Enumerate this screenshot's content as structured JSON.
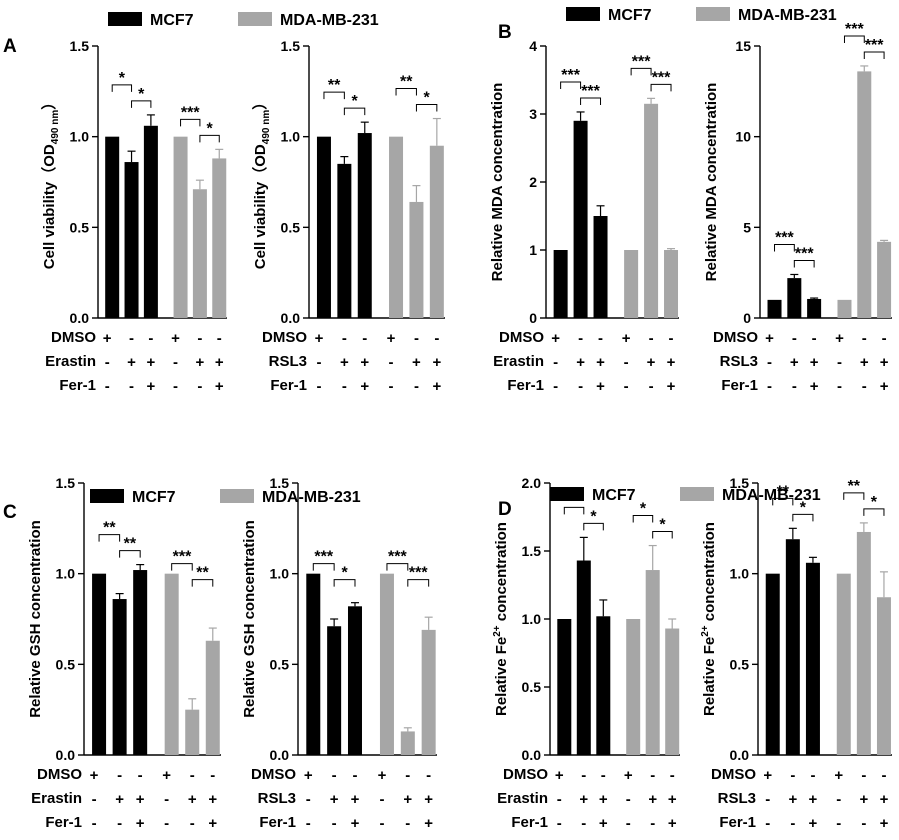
{
  "colors": {
    "mcf7": "#000000",
    "mda": "#a6a6a6"
  },
  "groups_order": [
    "MCF7",
    "MCF7",
    "MCF7",
    "MDA-MB-231",
    "MDA-MB-231",
    "MDA-MB-231"
  ],
  "chart_data": [
    {
      "type": "bar",
      "panel": "A",
      "legend": [
        "MCF7",
        "MDA-MB-231"
      ],
      "ylabel_main": "Cell viability（OD",
      "ylabel_sub": "490 nm",
      "ylabel_end": "）",
      "ylim": [
        0,
        1.5
      ],
      "yticks": [
        "0.0",
        "0.5",
        "1.0",
        "1.5"
      ],
      "values": [
        1.0,
        0.86,
        1.06,
        1.0,
        0.71,
        0.88
      ],
      "errors": [
        0,
        0.06,
        0.06,
        0,
        0.05,
        0.05
      ],
      "treatments": [
        {
          "name": "DMSO",
          "marks": [
            "+",
            "-",
            "-",
            "+",
            "-",
            "-"
          ]
        },
        {
          "name": "Erastin",
          "marks": [
            "-",
            "+",
            "+",
            "-",
            "+",
            "+"
          ]
        },
        {
          "name": "Fer-1",
          "marks": [
            "-",
            "-",
            "+",
            "-",
            "-",
            "+"
          ]
        }
      ],
      "significance": [
        {
          "from": 0,
          "to": 1,
          "label": "*"
        },
        {
          "from": 1,
          "to": 2,
          "label": "*"
        },
        {
          "from": 3,
          "to": 4,
          "label": "***"
        },
        {
          "from": 4,
          "to": 5,
          "label": "*"
        }
      ]
    },
    {
      "type": "bar",
      "panel": "A",
      "ylabel_main": "Cell viability（OD",
      "ylabel_sub": "490 nm",
      "ylabel_end": "）",
      "ylim": [
        0,
        1.5
      ],
      "yticks": [
        "0.0",
        "0.5",
        "1.0",
        "1.5"
      ],
      "values": [
        1.0,
        0.85,
        1.02,
        1.0,
        0.64,
        0.95
      ],
      "errors": [
        0,
        0.04,
        0.06,
        0,
        0.09,
        0.15
      ],
      "treatments": [
        {
          "name": "DMSO",
          "marks": [
            "+",
            "-",
            "-",
            "+",
            "-",
            "-"
          ]
        },
        {
          "name": "RSL3",
          "marks": [
            "-",
            "+",
            "+",
            "-",
            "+",
            "+"
          ]
        },
        {
          "name": "Fer-1",
          "marks": [
            "-",
            "-",
            "+",
            "-",
            "-",
            "+"
          ]
        }
      ],
      "significance": [
        {
          "from": 0,
          "to": 1,
          "label": "**"
        },
        {
          "from": 1,
          "to": 2,
          "label": "*"
        },
        {
          "from": 3,
          "to": 4,
          "label": "**"
        },
        {
          "from": 4,
          "to": 5,
          "label": "*"
        }
      ]
    },
    {
      "type": "bar",
      "panel": "B",
      "legend": [
        "MCF7",
        "MDA-MB-231"
      ],
      "ylabel_main": "Relative MDA concentration",
      "ylim": [
        0,
        4
      ],
      "yticks": [
        "0",
        "1",
        "2",
        "3",
        "4"
      ],
      "values": [
        1.0,
        2.9,
        1.5,
        1.0,
        3.15,
        1.0
      ],
      "errors": [
        0,
        0.13,
        0.15,
        0,
        0.08,
        0.02
      ],
      "treatments": [
        {
          "name": "DMSO",
          "marks": [
            "+",
            "-",
            "-",
            "+",
            "-",
            "-"
          ]
        },
        {
          "name": "Erastin",
          "marks": [
            "-",
            "+",
            "+",
            "-",
            "+",
            "+"
          ]
        },
        {
          "name": "Fer-1",
          "marks": [
            "-",
            "-",
            "+",
            "-",
            "-",
            "+"
          ]
        }
      ],
      "significance": [
        {
          "from": 0,
          "to": 1,
          "label": "***"
        },
        {
          "from": 1,
          "to": 2,
          "label": "***"
        },
        {
          "from": 3,
          "to": 4,
          "label": "***"
        },
        {
          "from": 4,
          "to": 5,
          "label": "***"
        }
      ]
    },
    {
      "type": "bar",
      "panel": "B",
      "ylabel_main": "Relative MDA concentration",
      "ylim": [
        0,
        15
      ],
      "yticks": [
        "0",
        "5",
        "10",
        "15"
      ],
      "values": [
        1.0,
        2.2,
        1.05,
        1.0,
        13.6,
        4.2
      ],
      "errors": [
        0,
        0.2,
        0.05,
        0,
        0.3,
        0.08
      ],
      "treatments": [
        {
          "name": "DMSO",
          "marks": [
            "+",
            "-",
            "-",
            "+",
            "-",
            "-"
          ]
        },
        {
          "name": "RSL3",
          "marks": [
            "-",
            "+",
            "+",
            "-",
            "+",
            "+"
          ]
        },
        {
          "name": "Fer-1",
          "marks": [
            "-",
            "-",
            "+",
            "-",
            "-",
            "+"
          ]
        }
      ],
      "significance": [
        {
          "from": 0,
          "to": 1,
          "label": "***"
        },
        {
          "from": 1,
          "to": 2,
          "label": "***"
        },
        {
          "from": 3,
          "to": 4,
          "label": "***"
        },
        {
          "from": 4,
          "to": 5,
          "label": "***"
        }
      ]
    },
    {
      "type": "bar",
      "panel": "C",
      "legend": [
        "MCF7",
        "MDA-MB-231"
      ],
      "ylabel_main": "Relative GSH concentration",
      "ylim": [
        0,
        1.5
      ],
      "yticks": [
        "0.0",
        "0.5",
        "1.0",
        "1.5"
      ],
      "values": [
        1.0,
        0.86,
        1.02,
        1.0,
        0.25,
        0.63
      ],
      "errors": [
        0,
        0.03,
        0.03,
        0,
        0.06,
        0.07
      ],
      "treatments": [
        {
          "name": "DMSO",
          "marks": [
            "+",
            "-",
            "-",
            "+",
            "-",
            "-"
          ]
        },
        {
          "name": "Erastin",
          "marks": [
            "-",
            "+",
            "+",
            "-",
            "+",
            "+"
          ]
        },
        {
          "name": "Fer-1",
          "marks": [
            "-",
            "-",
            "+",
            "-",
            "-",
            "+"
          ]
        }
      ],
      "significance": [
        {
          "from": 0,
          "to": 1,
          "label": "**"
        },
        {
          "from": 1,
          "to": 2,
          "label": "**"
        },
        {
          "from": 3,
          "to": 4,
          "label": "***"
        },
        {
          "from": 4,
          "to": 5,
          "label": "**"
        }
      ]
    },
    {
      "type": "bar",
      "panel": "C",
      "ylabel_main": "Relative GSH concentration",
      "ylim": [
        0,
        1.5
      ],
      "yticks": [
        "0.0",
        "0.5",
        "1.0",
        "1.5"
      ],
      "values": [
        1.0,
        0.71,
        0.82,
        1.0,
        0.13,
        0.69
      ],
      "errors": [
        0,
        0.04,
        0.02,
        0,
        0.02,
        0.07
      ],
      "treatments": [
        {
          "name": "DMSO",
          "marks": [
            "+",
            "-",
            "-",
            "+",
            "-",
            "-"
          ]
        },
        {
          "name": "RSL3",
          "marks": [
            "-",
            "+",
            "+",
            "-",
            "+",
            "+"
          ]
        },
        {
          "name": "Fer-1",
          "marks": [
            "-",
            "-",
            "+",
            "-",
            "-",
            "+"
          ]
        }
      ],
      "significance": [
        {
          "from": 0,
          "to": 1,
          "label": "***"
        },
        {
          "from": 1,
          "to": 2,
          "label": "*"
        },
        {
          "from": 3,
          "to": 4,
          "label": "***"
        },
        {
          "from": 4,
          "to": 5,
          "label": "***"
        }
      ]
    },
    {
      "type": "bar",
      "panel": "D",
      "legend": [
        "MCF7",
        "MDA-MB-231"
      ],
      "ylabel_main": "Relative Fe",
      "ylabel_sup": "2+",
      "ylabel_end": " concentration",
      "ylim": [
        0,
        2.0
      ],
      "yticks": [
        "0.0",
        "0.5",
        "1.0",
        "1.5",
        "2.0"
      ],
      "values": [
        1.0,
        1.43,
        1.02,
        1.0,
        1.36,
        0.93
      ],
      "errors": [
        0,
        0.17,
        0.12,
        0,
        0.18,
        0.07
      ],
      "treatments": [
        {
          "name": "DMSO",
          "marks": [
            "+",
            "-",
            "-",
            "+",
            "-",
            "-"
          ]
        },
        {
          "name": "Erastin",
          "marks": [
            "-",
            "+",
            "+",
            "-",
            "+",
            "+"
          ]
        },
        {
          "name": "Fer-1",
          "marks": [
            "-",
            "-",
            "+",
            "-",
            "-",
            "+"
          ]
        }
      ],
      "significance": [
        {
          "from": 0,
          "to": 1,
          "label": "*"
        },
        {
          "from": 1,
          "to": 2,
          "label": "*"
        },
        {
          "from": 3,
          "to": 4,
          "label": "*"
        },
        {
          "from": 4,
          "to": 5,
          "label": "*"
        }
      ]
    },
    {
      "type": "bar",
      "panel": "D",
      "ylabel_main": "Relative Fe",
      "ylabel_sup": "2+",
      "ylabel_end": " concentration",
      "ylim": [
        0,
        1.5
      ],
      "yticks": [
        "0.0",
        "0.5",
        "1.0",
        "1.5"
      ],
      "values": [
        1.0,
        1.19,
        1.06,
        1.0,
        1.23,
        0.87
      ],
      "errors": [
        0,
        0.06,
        0.03,
        0,
        0.05,
        0.14
      ],
      "treatments": [
        {
          "name": "DMSO",
          "marks": [
            "+",
            "-",
            "-",
            "+",
            "-",
            "-"
          ]
        },
        {
          "name": "RSL3",
          "marks": [
            "-",
            "+",
            "+",
            "-",
            "+",
            "+"
          ]
        },
        {
          "name": "Fer-1",
          "marks": [
            "-",
            "-",
            "+",
            "-",
            "-",
            "+"
          ]
        }
      ],
      "significance": [
        {
          "from": 0,
          "to": 1,
          "label": "**"
        },
        {
          "from": 1,
          "to": 2,
          "label": "*"
        },
        {
          "from": 3,
          "to": 4,
          "label": "**"
        },
        {
          "from": 4,
          "to": 5,
          "label": "*"
        }
      ]
    }
  ]
}
